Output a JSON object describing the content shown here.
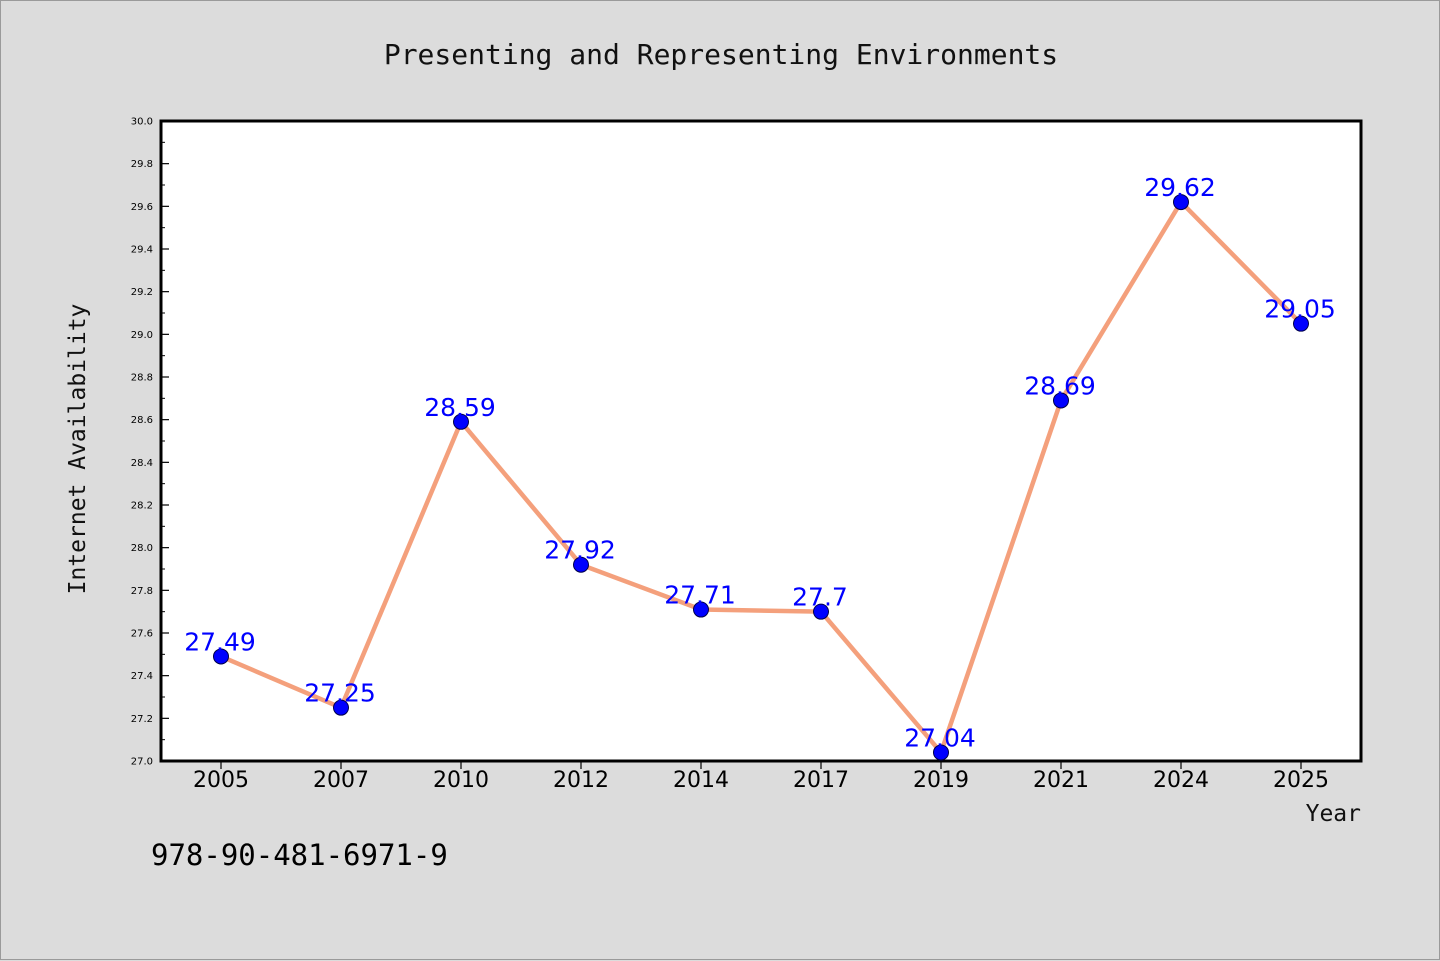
{
  "chart_data": {
    "type": "line",
    "title": "Presenting and Representing Environments",
    "xlabel": "Year",
    "ylabel": "Internet Availability",
    "categories": [
      "2005",
      "2007",
      "2010",
      "2012",
      "2014",
      "2017",
      "2019",
      "2021",
      "2024",
      "2025"
    ],
    "values": [
      27.49,
      27.25,
      28.59,
      27.92,
      27.71,
      27.7,
      27.04,
      28.69,
      29.62,
      29.05
    ],
    "data_labels": [
      "27.49",
      "27.25",
      "28.59",
      "27.92",
      "27.71",
      "27.7",
      "27.04",
      "28.69",
      "29.62",
      "29.05"
    ],
    "ylim": [
      27.0,
      30.0
    ],
    "yticks": [
      "27.0",
      "27.2",
      "27.4",
      "27.6",
      "27.8",
      "28.0",
      "28.2",
      "28.4",
      "28.6",
      "28.8",
      "29.0",
      "29.2",
      "29.4",
      "29.6",
      "29.8",
      "30.0"
    ],
    "grid": false,
    "legend": "none",
    "colors": {
      "line": "#f4a07c",
      "marker": "#0000ff",
      "labels": "#0000ff",
      "background": "#dcdcdc",
      "plot_background": "#ffffff"
    }
  },
  "footnote": "978-90-481-6971-9"
}
